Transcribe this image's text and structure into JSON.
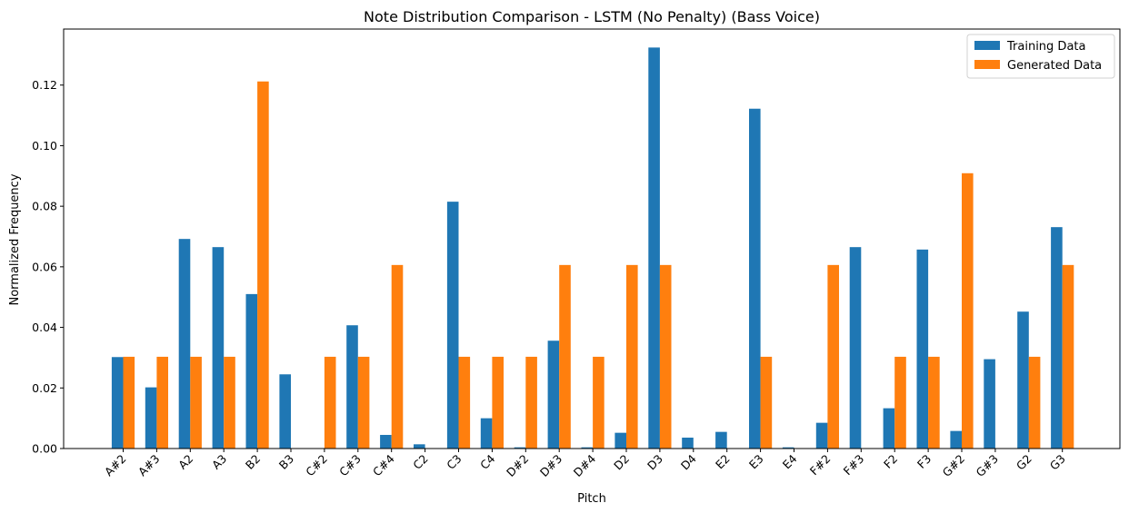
{
  "chart_data": {
    "type": "bar",
    "title": "Note Distribution Comparison - LSTM (No Penalty) (Bass Voice)",
    "xlabel": "Pitch",
    "ylabel": "Normalized Frequency",
    "ylim": [
      0,
      0.1385
    ],
    "yticks": [
      0.0,
      0.02,
      0.04,
      0.06,
      0.08,
      0.1,
      0.12
    ],
    "ytick_labels": [
      "0.00",
      "0.02",
      "0.04",
      "0.06",
      "0.08",
      "0.10",
      "0.12"
    ],
    "grid": false,
    "legend_position": "top-right",
    "categories": [
      "A#2",
      "A#3",
      "A2",
      "A3",
      "B2",
      "B3",
      "C#2",
      "C#3",
      "C#4",
      "C2",
      "C3",
      "C4",
      "D#2",
      "D#3",
      "D#4",
      "D2",
      "D3",
      "D4",
      "E2",
      "E3",
      "E4",
      "F#2",
      "F#3",
      "F2",
      "F3",
      "G#2",
      "G#3",
      "G2",
      "G3"
    ],
    "series": [
      {
        "name": "Training Data",
        "color": "#1f77b4",
        "values": [
          0.0302,
          0.0202,
          0.0692,
          0.0665,
          0.051,
          0.0245,
          0.0,
          0.0407,
          0.0045,
          0.0014,
          0.0815,
          0.01,
          0.0004,
          0.0356,
          0.0004,
          0.0052,
          0.1324,
          0.0036,
          0.0055,
          0.1122,
          0.0004,
          0.0085,
          0.0665,
          0.0133,
          0.0657,
          0.0058,
          0.0295,
          0.0452,
          0.0731
        ]
      },
      {
        "name": "Generated Data",
        "color": "#ff7f0e",
        "values": [
          0.0303,
          0.0303,
          0.0303,
          0.0303,
          0.1212,
          0.0,
          0.0303,
          0.0303,
          0.0606,
          0.0,
          0.0303,
          0.0303,
          0.0303,
          0.0606,
          0.0303,
          0.0606,
          0.0606,
          0.0,
          0.0,
          0.0303,
          0.0,
          0.0606,
          0.0,
          0.0303,
          0.0303,
          0.0909,
          0.0,
          0.0303,
          0.0606
        ]
      }
    ]
  }
}
